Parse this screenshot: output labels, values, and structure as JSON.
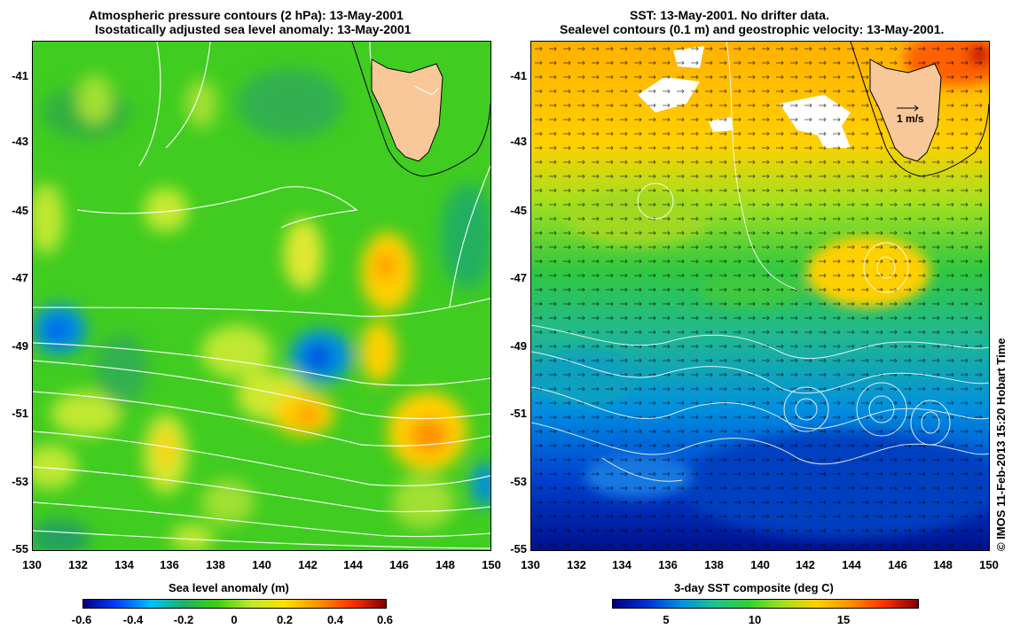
{
  "left": {
    "title1": "Atmospheric pressure contours (2 hPa): 13-May-2001",
    "title2": "Isostatically adjusted sea level anomaly: 13-May-2001",
    "colorbar_label": "Sea level anomaly (m)",
    "colorbar_ticks": [
      "-0.6",
      "-0.4",
      "-0.2",
      "0",
      "0.2",
      "0.4",
      "0.6"
    ],
    "colors": [
      "#00007f",
      "#0040ff",
      "#00c0ff",
      "#20b060",
      "#40d010",
      "#c0e830",
      "#ffe000",
      "#ff9000",
      "#ff3000",
      "#800000"
    ]
  },
  "right": {
    "title1": "SST: 13-May-2001. No drifter data.",
    "title2": "Sealevel contours (0.1 m) and geostrophic velocity: 13-May-2001.",
    "colorbar_label": "3-day SST composite (deg C)",
    "colorbar_ticks": [
      "5",
      "10",
      "15"
    ],
    "scale_label": "1 m/s",
    "colors": [
      "#00007f",
      "#0030d0",
      "#0090e0",
      "#20c090",
      "#30d030",
      "#a0e020",
      "#ffd000",
      "#ff9000",
      "#ff3000",
      "#800000"
    ]
  },
  "axes": {
    "lat_ticks": [
      "-41",
      "-43",
      "-45",
      "-47",
      "-49",
      "-51",
      "-53",
      "-55"
    ],
    "lon_ticks": [
      "130",
      "132",
      "134",
      "136",
      "138",
      "140",
      "142",
      "144",
      "146",
      "148",
      "150"
    ]
  },
  "credit": "© IMOS 11-Feb-2013 15:20 Hobart Time",
  "land_color": "#f8c898"
}
